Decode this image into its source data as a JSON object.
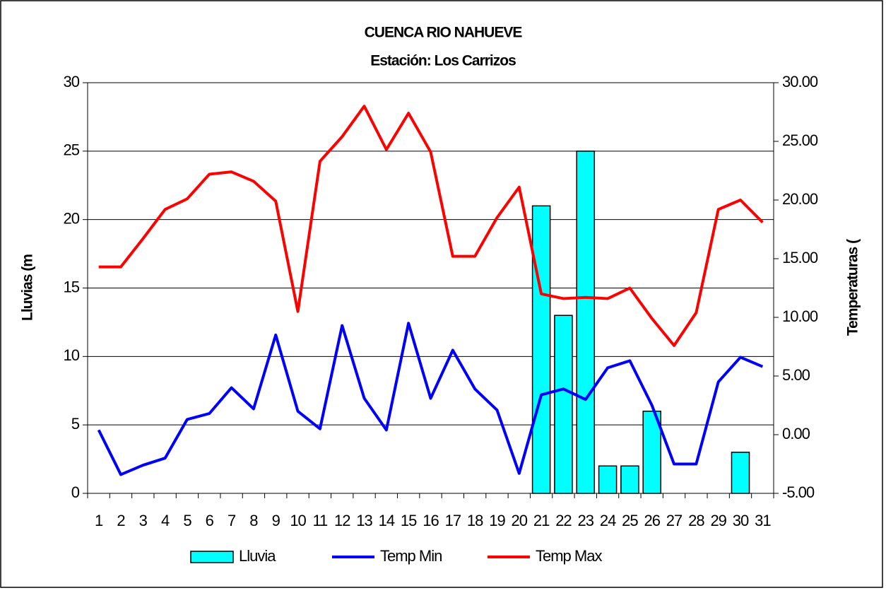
{
  "chart_data": {
    "type": "bar-line",
    "title": "CUENCA RIO NAHUEVE",
    "subtitle": "Estación: Los Carrizos",
    "y_label": "Lluvias (m",
    "y2_label": "Temperaturas (",
    "categories": [
      "1",
      "2",
      "3",
      "4",
      "5",
      "6",
      "7",
      "8",
      "9",
      "10",
      "11",
      "12",
      "13",
      "14",
      "15",
      "16",
      "17",
      "18",
      "19",
      "20",
      "21",
      "22",
      "23",
      "24",
      "25",
      "26",
      "27",
      "28",
      "29",
      "30",
      "31"
    ],
    "series": [
      {
        "name": "Lluvia",
        "type": "bar",
        "color": "#00ffff",
        "values": [
          0,
          0,
          0,
          0,
          0,
          0,
          0,
          0,
          0,
          0,
          0,
          0,
          0,
          0,
          0,
          0,
          0,
          0,
          0,
          0,
          21,
          13,
          25,
          2,
          2,
          6,
          0,
          0,
          0,
          3,
          0
        ]
      },
      {
        "name": "Temp Min",
        "type": "line",
        "axis": "y2",
        "color": "#0000ff",
        "values": [
          0.4,
          -3.4,
          -2.6,
          -2.0,
          1.3,
          1.8,
          4.0,
          2.2,
          8.5,
          2.0,
          0.5,
          9.3,
          3.1,
          0.4,
          9.5,
          3.1,
          7.2,
          3.9,
          2.1,
          -3.3,
          3.4,
          3.9,
          3.0,
          5.7,
          6.3,
          2.5,
          -2.5,
          -2.5,
          4.5,
          6.6,
          5.8
        ]
      },
      {
        "name": "Temp Max",
        "type": "line",
        "axis": "y2",
        "color": "#ff0000",
        "values": [
          14.3,
          14.3,
          16.7,
          19.2,
          20.1,
          22.2,
          22.4,
          21.6,
          19.9,
          10.5,
          23.3,
          25.4,
          28.0,
          24.3,
          27.4,
          24.1,
          15.2,
          15.2,
          18.5,
          21.1,
          12.0,
          11.6,
          11.7,
          11.6,
          12.5,
          9.9,
          7.6,
          10.4,
          19.2,
          20.0,
          18.1
        ]
      }
    ],
    "ylim": [
      0,
      30
    ],
    "yticks": [
      0,
      5,
      10,
      15,
      20,
      25,
      30
    ],
    "y2lim": [
      -5,
      30
    ],
    "y2ticks": [
      {
        "value": -5,
        "label": "-5.00"
      },
      {
        "value": 0,
        "label": "0.00"
      },
      {
        "value": 5,
        "label": "5.00"
      },
      {
        "value": 10,
        "label": "10.00"
      },
      {
        "value": 15,
        "label": "15.00"
      },
      {
        "value": 20,
        "label": "20.00"
      },
      {
        "value": 25,
        "label": "25.00"
      },
      {
        "value": 30,
        "label": "30.00"
      }
    ],
    "grid": true
  }
}
